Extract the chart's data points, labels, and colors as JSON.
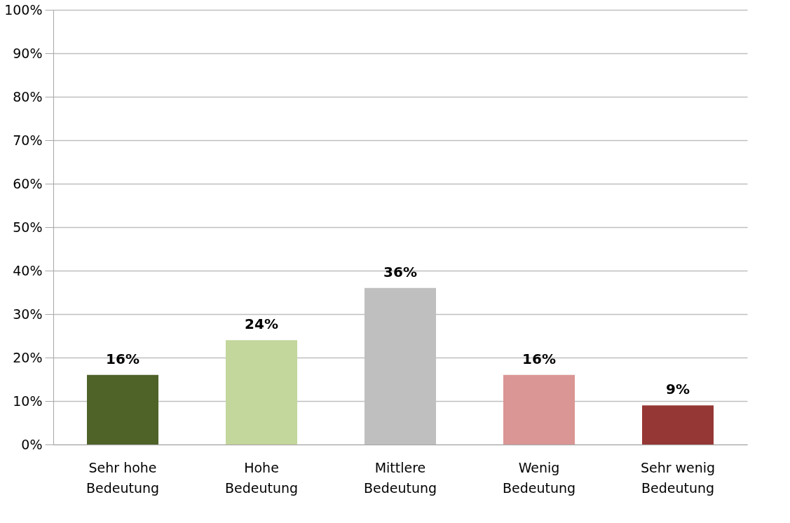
{
  "chart_data": {
    "type": "bar",
    "categories": [
      "Sehr hohe Bedeutung",
      "Hohe Bedeutung",
      "Mittlere Bedeutung",
      "Wenig Bedeutung",
      "Sehr wenig Bedeutung"
    ],
    "values": [
      16,
      24,
      36,
      16,
      9
    ],
    "value_labels": [
      "16%",
      "24%",
      "36%",
      "16%",
      "9%"
    ],
    "colors": [
      "#4f6228",
      "#c3d69b",
      "#bfbfbf",
      "#d99694",
      "#953735"
    ],
    "ylim": [
      0,
      100
    ],
    "yticks": [
      {
        "value": 0,
        "label": "0%"
      },
      {
        "value": 10,
        "label": "10%"
      },
      {
        "value": 20,
        "label": "20%"
      },
      {
        "value": 30,
        "label": "30%"
      },
      {
        "value": 40,
        "label": "40%"
      },
      {
        "value": 50,
        "label": "50%"
      },
      {
        "value": 60,
        "label": "60%"
      },
      {
        "value": 70,
        "label": "70%"
      },
      {
        "value": 80,
        "label": "80%"
      },
      {
        "value": 90,
        "label": "90%"
      },
      {
        "value": 100,
        "label": "100%"
      }
    ],
    "grid": "y"
  }
}
